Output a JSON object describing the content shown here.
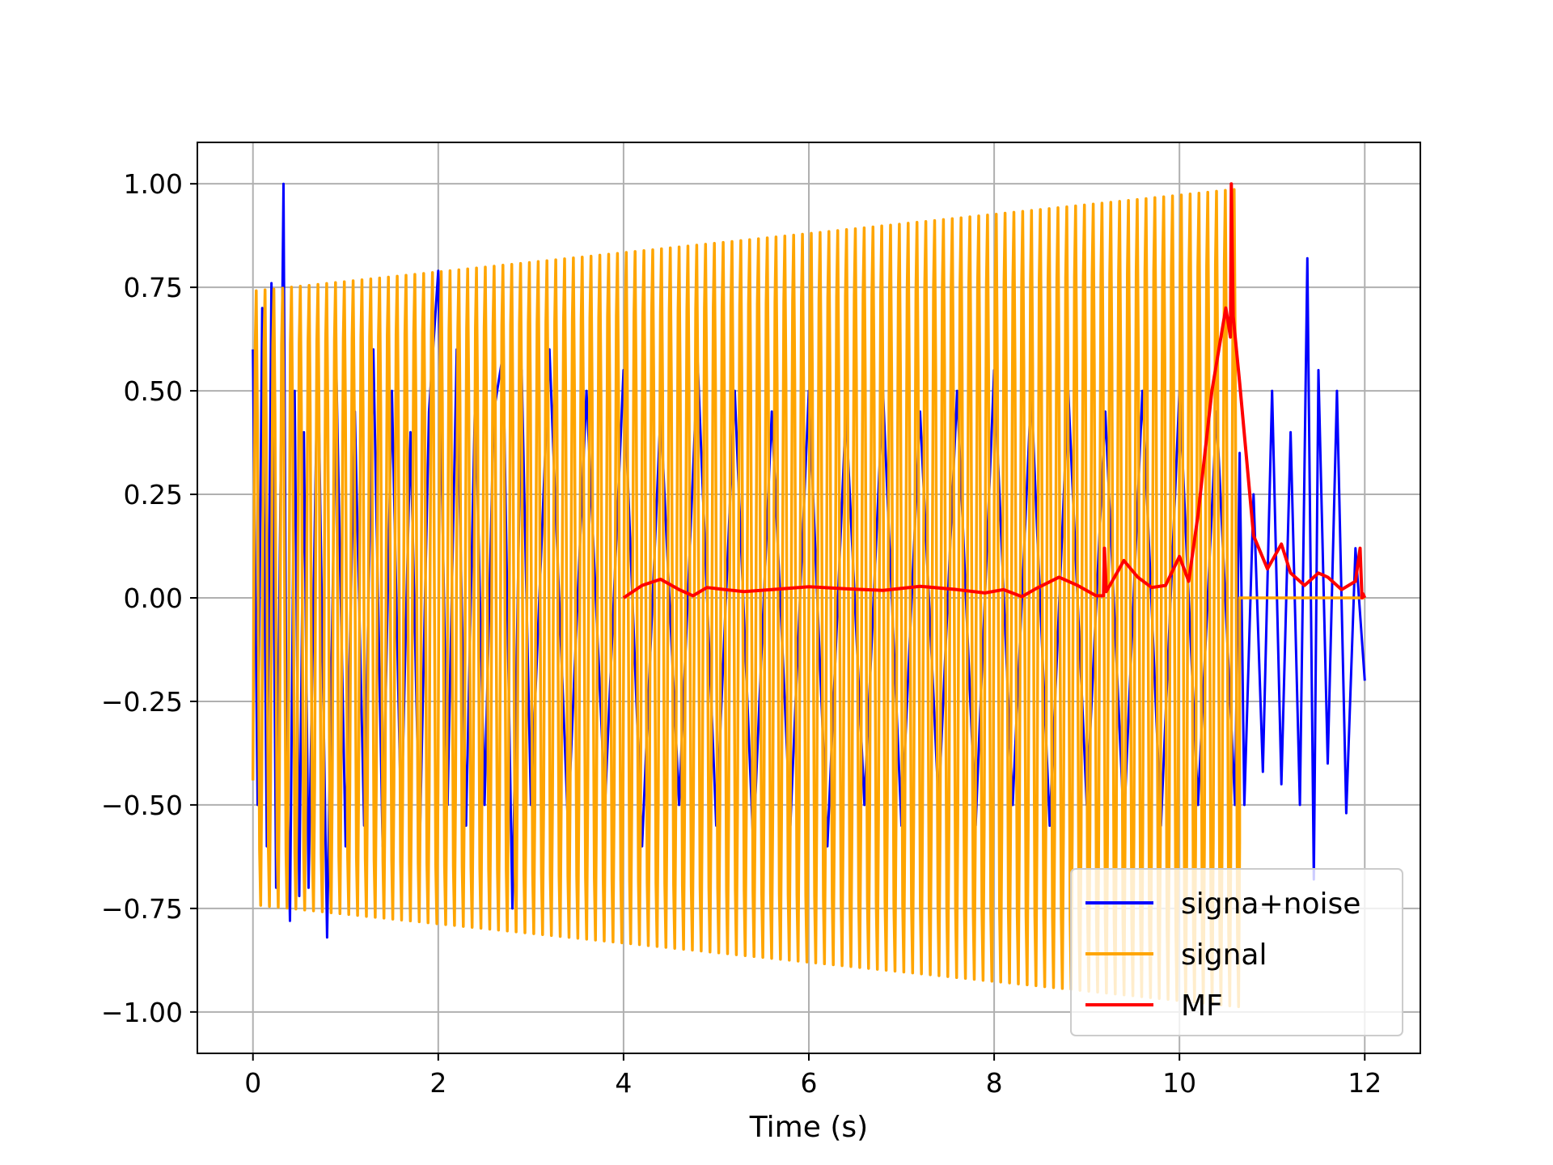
{
  "chart_data": {
    "type": "line",
    "title": "",
    "xlabel": "Time (s)",
    "ylabel": "",
    "xlim": [
      -0.6,
      12.6
    ],
    "ylim": [
      -1.1,
      1.1
    ],
    "xticks": [
      0,
      2,
      4,
      6,
      8,
      10,
      12
    ],
    "xtick_labels": [
      "0",
      "2",
      "4",
      "6",
      "8",
      "10",
      "12"
    ],
    "yticks": [
      1.0,
      0.75,
      0.5,
      0.25,
      0.0,
      -0.25,
      -0.5,
      -0.75,
      -1.0
    ],
    "ytick_labels": [
      "1.00",
      "0.75",
      "0.50",
      "0.25",
      "0.00",
      "−0.25",
      "−0.50",
      "−0.75",
      "−1.00"
    ],
    "grid": true,
    "legend_position": "lower-right",
    "series": [
      {
        "name": "signa+noise",
        "color": "#0000ff",
        "x": [
          0.0,
          0.05,
          0.1,
          0.15,
          0.2,
          0.25,
          0.3,
          0.33,
          0.36,
          0.4,
          0.45,
          0.5,
          0.55,
          0.6,
          0.7,
          0.8,
          0.9,
          1.0,
          1.1,
          1.2,
          1.3,
          1.4,
          1.5,
          1.6,
          1.7,
          1.8,
          1.9,
          2.0,
          2.1,
          2.2,
          2.3,
          2.4,
          2.5,
          2.6,
          2.7,
          2.8,
          2.9,
          3.0,
          3.2,
          3.4,
          3.6,
          3.8,
          4.0,
          4.2,
          4.4,
          4.6,
          4.8,
          5.0,
          5.2,
          5.4,
          5.6,
          5.8,
          6.0,
          6.2,
          6.4,
          6.6,
          6.8,
          7.0,
          7.2,
          7.4,
          7.6,
          7.8,
          8.0,
          8.2,
          8.4,
          8.6,
          8.8,
          9.0,
          9.2,
          9.4,
          9.6,
          9.8,
          10.0,
          10.2,
          10.4,
          10.6,
          10.65,
          10.7,
          10.8,
          10.9,
          11.0,
          11.1,
          11.2,
          11.3,
          11.38,
          11.45,
          11.5,
          11.6,
          11.7,
          11.8,
          11.9,
          12.0
        ],
        "y": [
          0.6,
          -0.5,
          0.7,
          -0.6,
          0.76,
          -0.7,
          0.3,
          1.0,
          -0.3,
          -0.78,
          0.5,
          -0.72,
          0.4,
          -0.7,
          0.6,
          -0.82,
          0.55,
          -0.6,
          0.45,
          -0.55,
          0.6,
          -0.6,
          0.5,
          -0.55,
          0.4,
          -0.6,
          0.45,
          0.79,
          -0.5,
          0.6,
          -0.55,
          0.5,
          -0.5,
          0.45,
          0.59,
          -0.75,
          0.55,
          -0.5,
          0.6,
          -0.55,
          0.5,
          -0.5,
          0.55,
          -0.6,
          0.45,
          -0.5,
          0.57,
          -0.55,
          0.5,
          -0.6,
          0.45,
          -0.55,
          0.5,
          -0.6,
          0.45,
          -0.5,
          0.5,
          -0.55,
          0.45,
          -0.5,
          0.5,
          -0.55,
          0.55,
          -0.5,
          0.5,
          -0.55,
          0.5,
          -0.5,
          0.45,
          -0.55,
          0.5,
          -0.55,
          0.5,
          -0.5,
          0.45,
          -0.5,
          0.35,
          -0.5,
          0.25,
          -0.42,
          0.5,
          -0.45,
          0.4,
          -0.5,
          0.82,
          -0.68,
          0.55,
          -0.4,
          0.5,
          -0.52,
          0.12,
          -0.2
        ]
      },
      {
        "name": "signal",
        "color": "#ffa500",
        "envelope_start": 0.75,
        "envelope_end": 1.0,
        "t_start": 0.0,
        "t_end": 10.65,
        "cycles": 112,
        "tail_end": 12.0,
        "tail_value": 0.0
      },
      {
        "name": "MF",
        "color": "#ff0000",
        "x": [
          4.0,
          4.2,
          4.4,
          4.6,
          4.75,
          4.9,
          5.1,
          5.3,
          5.6,
          6.0,
          6.4,
          6.8,
          7.2,
          7.6,
          7.9,
          8.1,
          8.3,
          8.45,
          8.7,
          8.9,
          9.1,
          9.18,
          9.19,
          9.21,
          9.4,
          9.55,
          9.7,
          9.85,
          10.0,
          10.1,
          10.2,
          10.35,
          10.5,
          10.55,
          10.56,
          10.58,
          10.65,
          10.8,
          10.95,
          11.1,
          11.2,
          11.35,
          11.5,
          11.6,
          11.75,
          11.9,
          11.95,
          11.97,
          11.98,
          12.0
        ],
        "y": [
          0.0,
          0.03,
          0.045,
          0.02,
          0.005,
          0.025,
          0.02,
          0.015,
          0.02,
          0.027,
          0.022,
          0.018,
          0.028,
          0.02,
          0.012,
          0.02,
          0.003,
          0.022,
          0.05,
          0.03,
          0.005,
          0.005,
          0.12,
          0.015,
          0.09,
          0.05,
          0.025,
          0.03,
          0.1,
          0.04,
          0.2,
          0.5,
          0.7,
          0.63,
          1.0,
          0.68,
          0.52,
          0.15,
          0.07,
          0.13,
          0.06,
          0.03,
          0.06,
          0.05,
          0.02,
          0.04,
          0.12,
          0.0,
          0.01,
          0.0
        ]
      }
    ]
  }
}
